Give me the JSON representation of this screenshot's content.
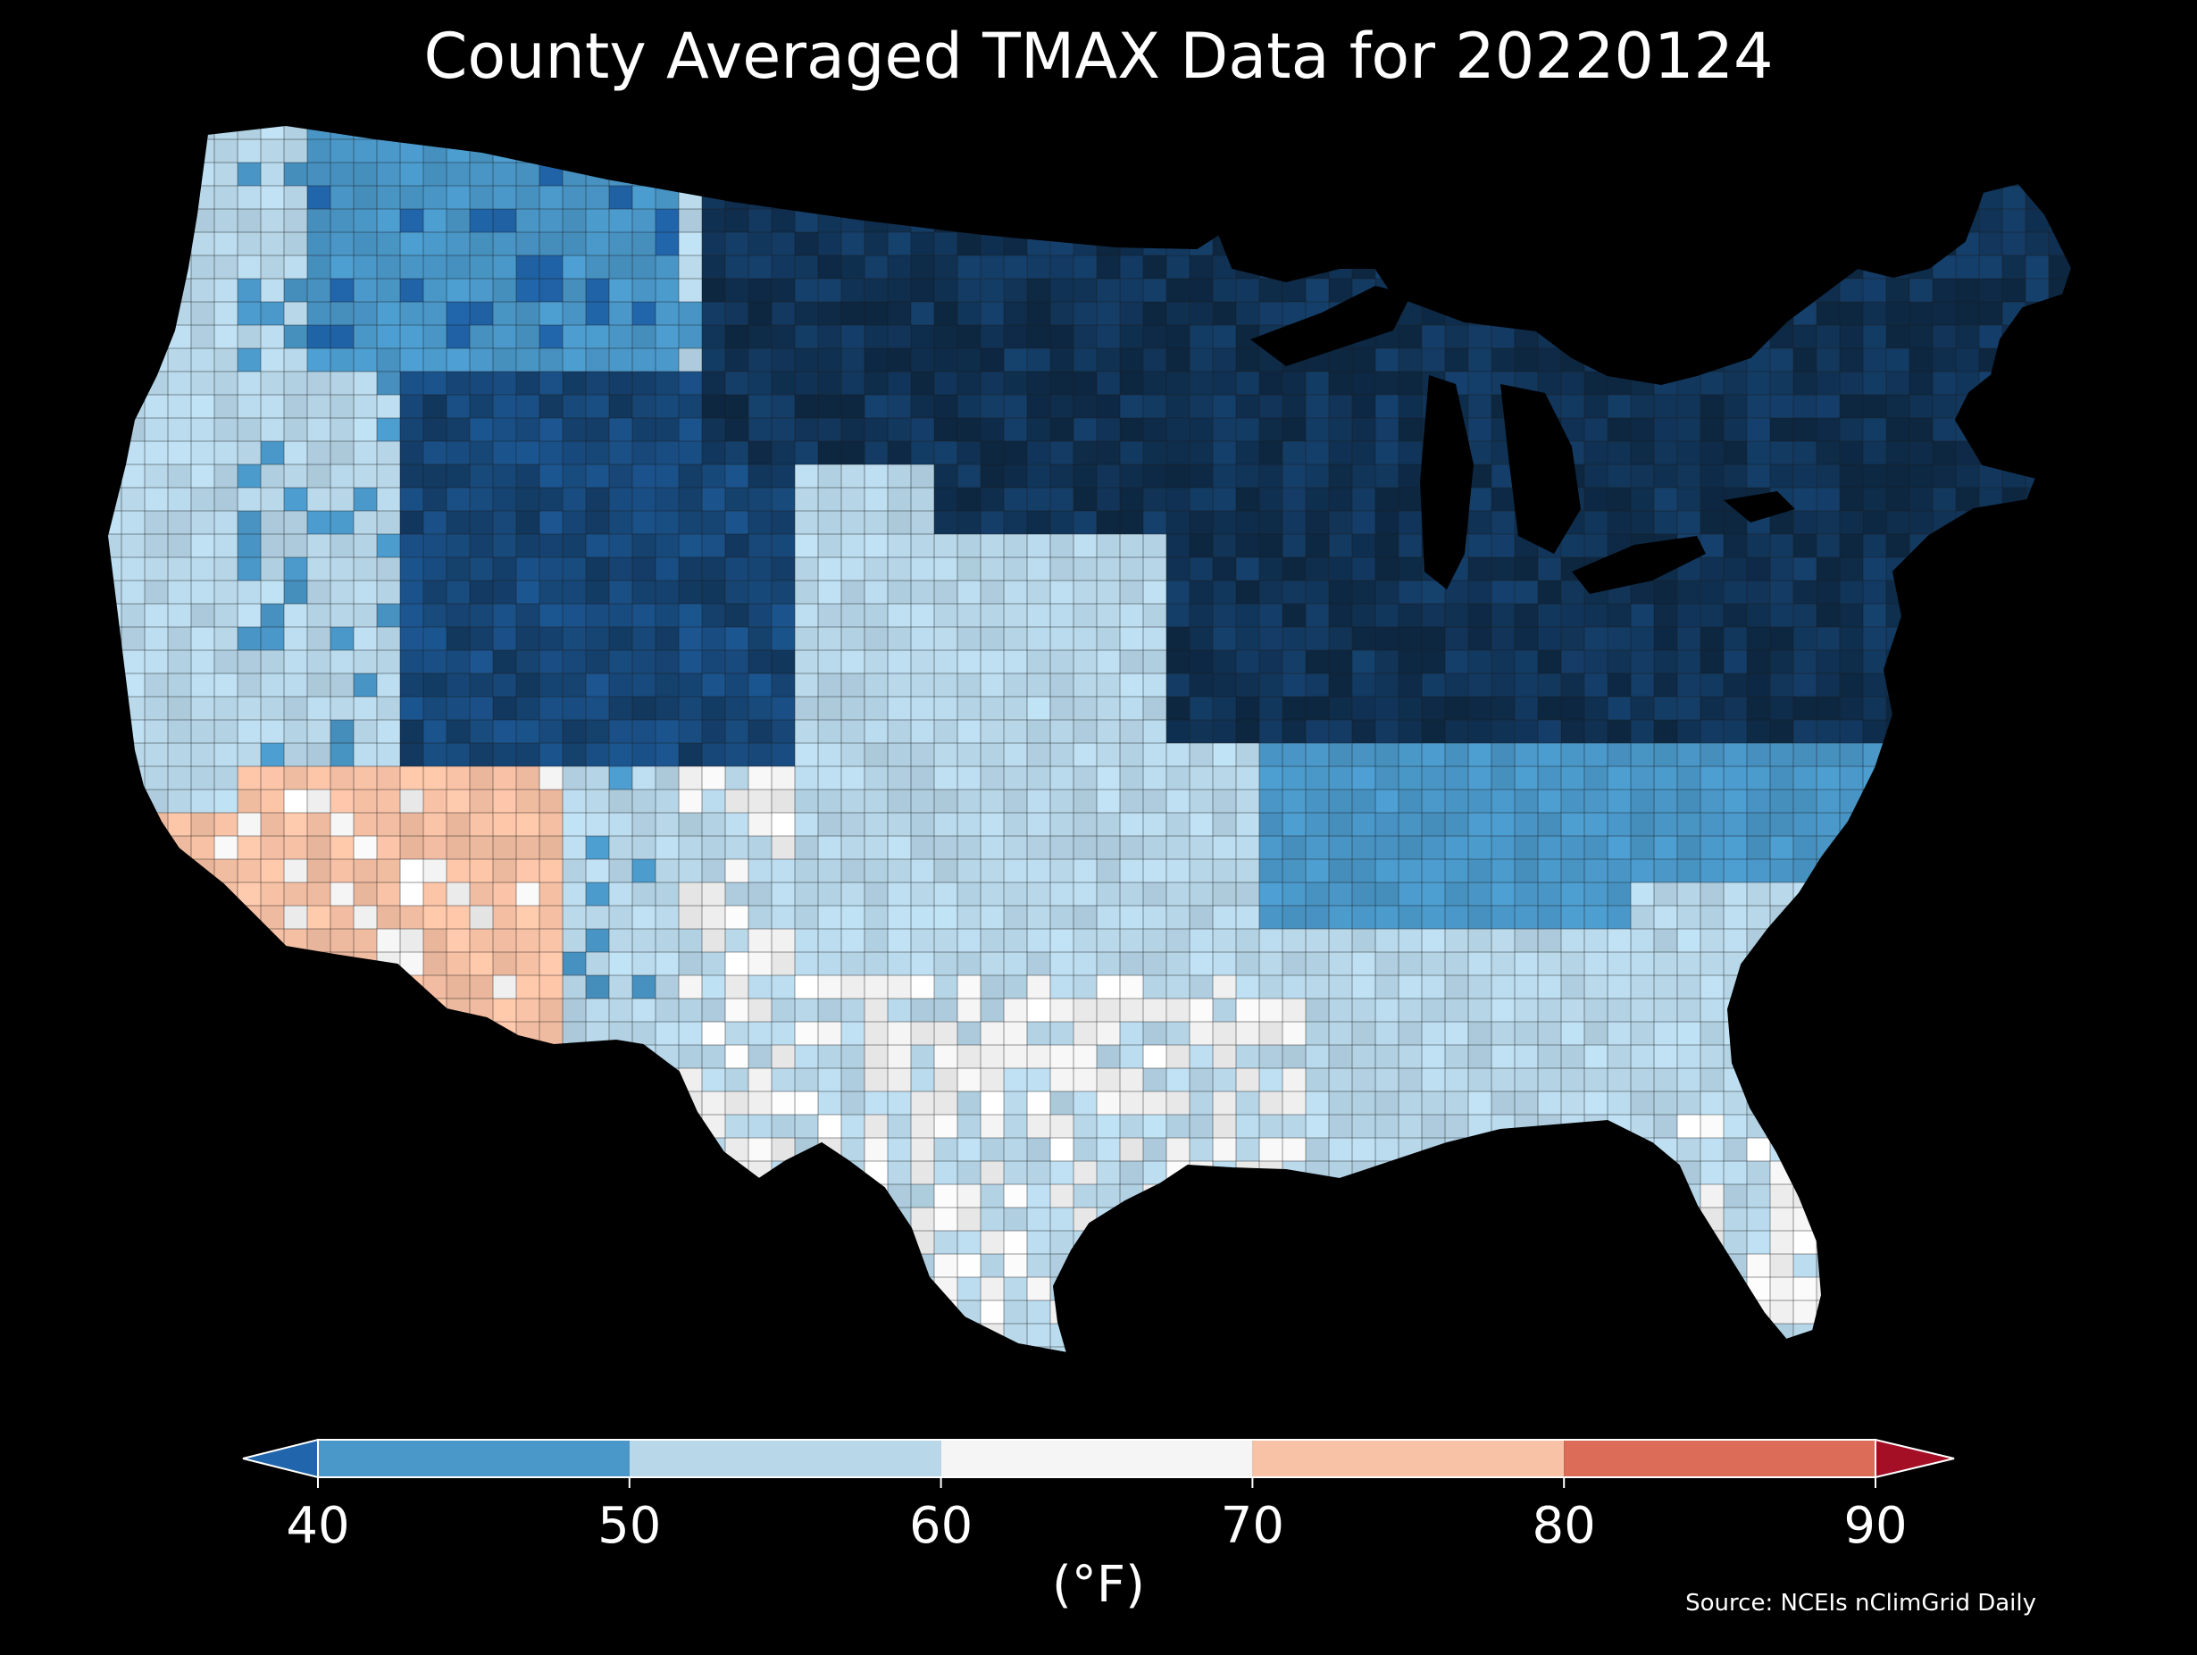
{
  "title": "County Averaged TMAX Data for 20220124",
  "colorbar": {
    "label": "(°F)",
    "ticks": [
      "40",
      "50",
      "60",
      "70",
      "80",
      "90"
    ],
    "under_color": "#2166ac",
    "over_color": "#a50f26",
    "bins": [
      {
        "from": 40,
        "to": 50,
        "color": "#4a98c9"
      },
      {
        "from": 50,
        "to": 60,
        "color": "#b8d8ea"
      },
      {
        "from": 60,
        "to": 70,
        "color": "#f5f5f5"
      },
      {
        "from": 70,
        "to": 80,
        "color": "#f8c2a6"
      },
      {
        "from": 80,
        "to": 90,
        "color": "#dc6b58"
      }
    ]
  },
  "source": "Source: NCEIs nClimGrid Daily",
  "map": {
    "background": "#000000",
    "county_border_color": "#1a1a1a",
    "regions": [
      {
        "name": "pacific-northwest-coast",
        "value": 55
      },
      {
        "name": "northern-rockies",
        "value": 42
      },
      {
        "name": "wyoming-colorado-highlands",
        "value": 34
      },
      {
        "name": "northern-plains-upper-midwest",
        "value": 30
      },
      {
        "name": "great-lakes-northeast",
        "value": 30
      },
      {
        "name": "central-plains",
        "value": 57
      },
      {
        "name": "southern-plains-texas",
        "value": 60
      },
      {
        "name": "southeast",
        "value": 55
      },
      {
        "name": "florida",
        "value": 60
      },
      {
        "name": "mid-atlantic-ohio-valley",
        "value": 45
      },
      {
        "name": "southern-california-arizona",
        "value": 72
      },
      {
        "name": "great-basin-southwest",
        "value": 52
      }
    ]
  }
}
